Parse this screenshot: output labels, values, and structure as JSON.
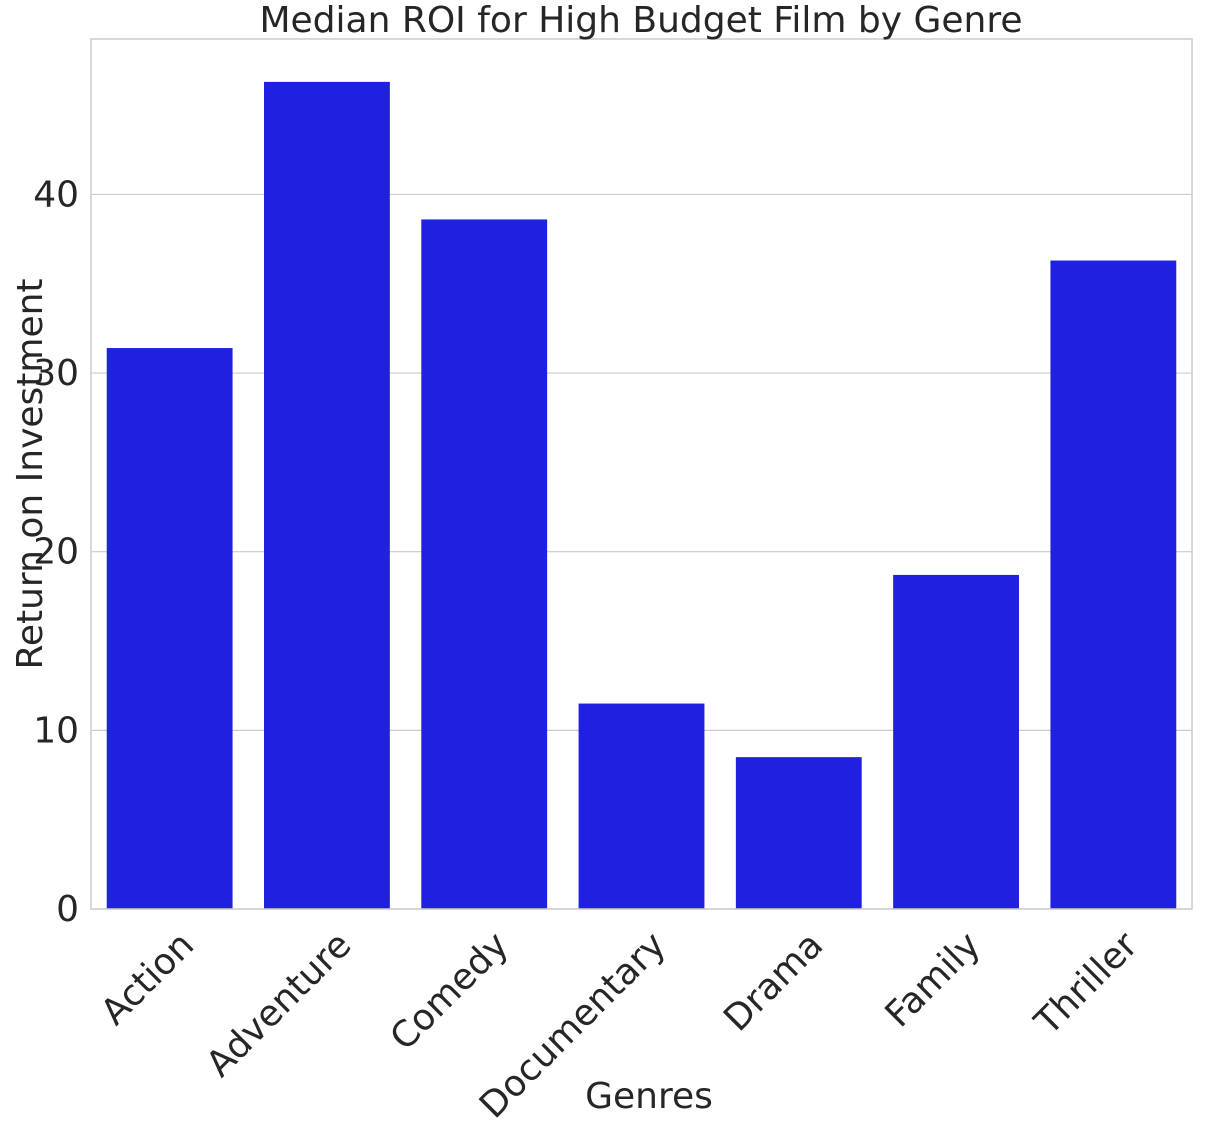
{
  "chart_data": {
    "type": "bar",
    "title": "Median ROI for High Budget Film by Genre",
    "xlabel": "Genres",
    "ylabel": "Return on Investment",
    "categories": [
      "Action",
      "Adventure",
      "Comedy",
      "Documentary",
      "Drama",
      "Family",
      "Thriller"
    ],
    "values": [
      31.4,
      46.3,
      38.6,
      11.5,
      8.5,
      18.7,
      36.3
    ],
    "ylim": [
      0,
      48.7
    ],
    "yticks": [
      0,
      10,
      20,
      30,
      40
    ],
    "ytick_labels": [
      "0",
      "10",
      "20",
      "30",
      "40"
    ],
    "grid": "horizontal",
    "bar_color": "#2020e0",
    "grid_color": "#cccccc",
    "frame_color": "#cccccc"
  }
}
